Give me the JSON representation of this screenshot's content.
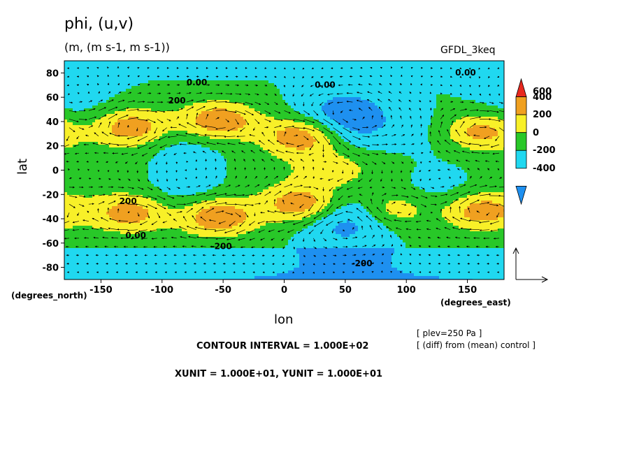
{
  "title": "phi, (u,v)",
  "subtitle": "(m, (m s-1, m s-1))",
  "dataset_label": "GFDL_3keq",
  "notes": {
    "plev": "[ plev=250 Pa ]",
    "diff": "[ (diff) from (mean) control ]",
    "contour_interval": "CONTOUR INTERVAL = 1.000E+02",
    "vector_units": "XUNIT = 1.000E+01, YUNIT = 1.000E+01"
  },
  "chart_data": {
    "type": "heatmap",
    "xlabel": "lon",
    "ylabel": "lat",
    "x_units_label": "(degrees_east)",
    "y_units_label": "(degrees_north)",
    "xlim": [
      -180,
      180
    ],
    "ylim": [
      -90,
      90
    ],
    "x_ticks": [
      -150,
      -100,
      -50,
      0,
      50,
      100,
      150
    ],
    "x_tick_labels": [
      "-150",
      "-100",
      "-50",
      "0",
      "50",
      "100",
      "150"
    ],
    "y_ticks": [
      80,
      60,
      40,
      20,
      0,
      -20,
      -40,
      -60,
      -80
    ],
    "y_tick_labels": [
      "80",
      "60",
      "40",
      "20",
      "0",
      "-20",
      "-40",
      "-60",
      "-80"
    ],
    "contour_labels": [
      {
        "text": "0.00",
        "lon": -80,
        "lat": 70
      },
      {
        "text": "0.00",
        "lon": 25,
        "lat": 68
      },
      {
        "text": "0.00",
        "lon": 140,
        "lat": 78
      },
      {
        "text": "200",
        "lon": -95,
        "lat": 55
      },
      {
        "text": "200",
        "lon": -135,
        "lat": -28
      },
      {
        "text": "0.00",
        "lon": -130,
        "lat": -56
      },
      {
        "text": "-200",
        "lon": -60,
        "lat": -65
      },
      {
        "text": "-200",
        "lon": 55,
        "lat": -79
      }
    ],
    "colorbar": {
      "labels": [
        "600",
        "400",
        "200",
        "0",
        "-200",
        "-400"
      ],
      "label_values": [
        600,
        400,
        200,
        0,
        -200,
        -400
      ],
      "bands": [
        {
          "from": 500,
          "to": 700,
          "color": "#e8281e"
        },
        {
          "from": 300,
          "to": 500,
          "color": "#f0a020"
        },
        {
          "from": 100,
          "to": 300,
          "color": "#f8f028"
        },
        {
          "from": -100,
          "to": 100,
          "color": "#28c828"
        },
        {
          "from": -300,
          "to": -100,
          "color": "#20d8f0"
        },
        {
          "from": -500,
          "to": -300,
          "color": "#1e90f0"
        }
      ]
    },
    "features": [
      {
        "kind": "high",
        "lon": -125,
        "lat": 35,
        "value": 500
      },
      {
        "kind": "high",
        "lon": -55,
        "lat": 40,
        "value": 550
      },
      {
        "kind": "high",
        "lon": 15,
        "lat": 28,
        "value": 550
      },
      {
        "kind": "high",
        "lon": 160,
        "lat": 32,
        "value": 500
      },
      {
        "kind": "high",
        "lon": -125,
        "lat": -35,
        "value": 450
      },
      {
        "kind": "high",
        "lon": -55,
        "lat": -38,
        "value": 550
      },
      {
        "kind": "high",
        "lon": 15,
        "lat": -28,
        "value": 550
      },
      {
        "kind": "high",
        "lon": 160,
        "lat": -33,
        "value": 500
      },
      {
        "kind": "high",
        "lon": 90,
        "lat": -32,
        "value": 350
      },
      {
        "kind": "low",
        "lon": 50,
        "lat": 42,
        "value": -450
      },
      {
        "kind": "low",
        "lon": 50,
        "lat": -40,
        "value": -400
      },
      {
        "kind": "low",
        "lon": -80,
        "lat": 22,
        "value": -200
      },
      {
        "kind": "low",
        "lon": -80,
        "lat": -20,
        "value": -200
      },
      {
        "kind": "low",
        "lon": 130,
        "lat": -20,
        "value": -200
      },
      {
        "kind": "low",
        "lon": -170,
        "lat": 50,
        "value": -150
      },
      {
        "kind": "low",
        "lon": 125,
        "lat": 30,
        "value": -150
      },
      {
        "kind": "high",
        "lon": 40,
        "lat": 0,
        "value": 250
      }
    ]
  }
}
